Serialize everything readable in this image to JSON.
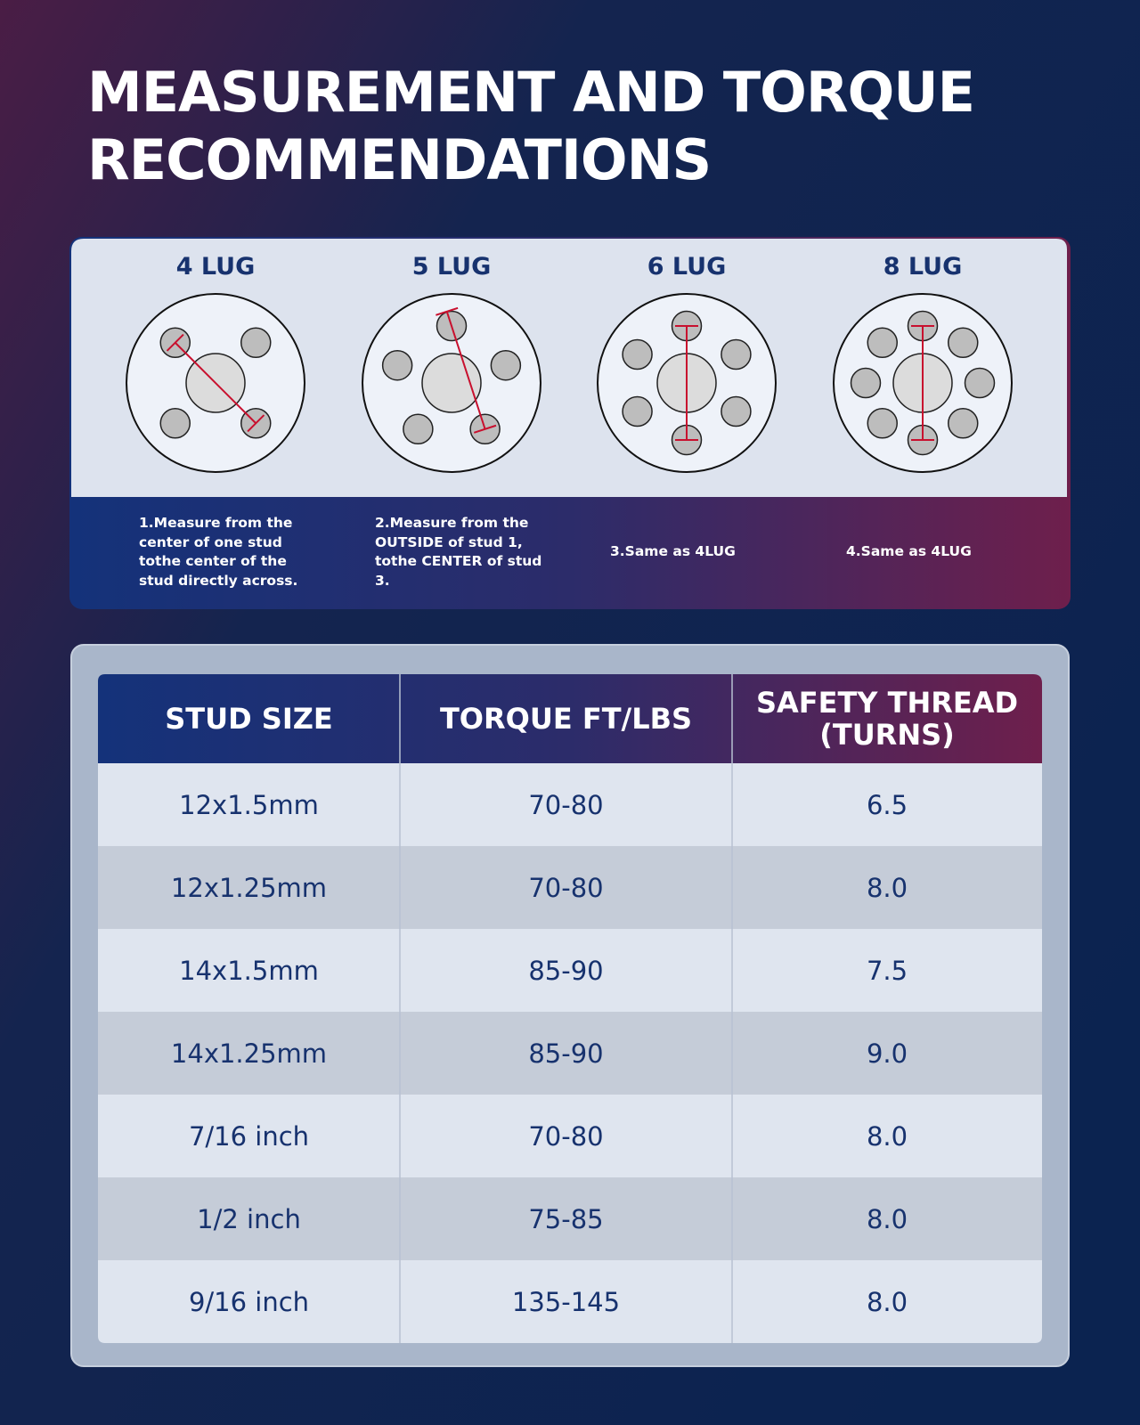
{
  "title": "MEASUREMENT AND TORQUE RECOMMENDATIONS",
  "lugs": [
    {
      "label": "4 LUG",
      "note": "1.Measure from the center of one stud tothe center of the stud directly across."
    },
    {
      "label": "5 LUG",
      "note": "2.Measure from the OUTSIDE of stud 1, tothe CENTER of stud 3."
    },
    {
      "label": "6 LUG",
      "note": "3.Same as 4LUG"
    },
    {
      "label": "8 LUG",
      "note": "4.Same as 4LUG"
    }
  ],
  "table": {
    "header": [
      "STUD SIZE",
      "TORQUE FT/LBS",
      "SAFETY THREAD (TURNS)"
    ],
    "rows": [
      [
        "12x1.5mm",
        "70-80",
        "6.5"
      ],
      [
        "12x1.25mm",
        "70-80",
        "8.0"
      ],
      [
        "14x1.5mm",
        "85-90",
        "7.5"
      ],
      [
        "14x1.25mm",
        "85-90",
        "9.0"
      ],
      [
        "7/16 inch",
        "70-80",
        "8.0"
      ],
      [
        "1/2 inch",
        "75-85",
        "8.0"
      ],
      [
        "9/16 inch",
        "135-145",
        "8.0"
      ]
    ]
  }
}
